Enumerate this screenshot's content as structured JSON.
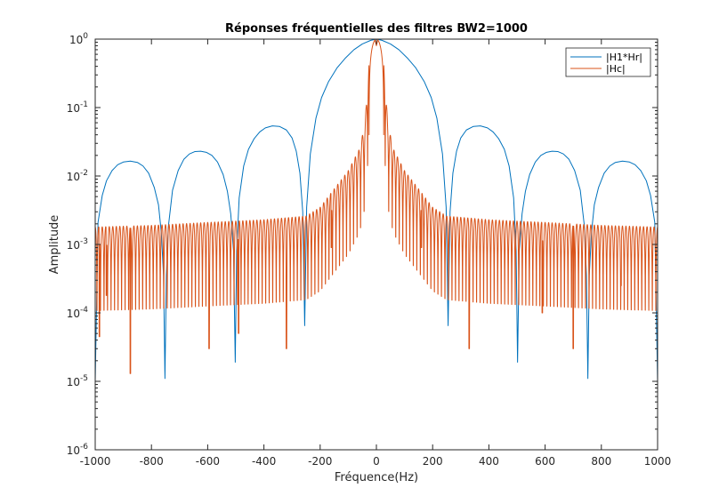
{
  "chart_data": {
    "type": "line",
    "title": "Réponses fréquentielles des filtres BW2=1000",
    "xlabel": "Fréquence(Hz)",
    "ylabel": "Amplitude",
    "xlim": [
      -1000,
      1000
    ],
    "ylim": [
      1e-06,
      1
    ],
    "yscale": "log",
    "xticks": [
      -1000,
      -800,
      -600,
      -400,
      -200,
      0,
      200,
      400,
      600,
      800,
      1000
    ],
    "yticks": [
      {
        "value": 1e-06,
        "base": "10",
        "exp": "-6"
      },
      {
        "value": 1e-05,
        "base": "10",
        "exp": "-5"
      },
      {
        "value": 0.0001,
        "base": "10",
        "exp": "-4"
      },
      {
        "value": 0.001,
        "base": "10",
        "exp": "-3"
      },
      {
        "value": 0.01,
        "base": "10",
        "exp": "-2"
      },
      {
        "value": 0.1,
        "base": "10",
        "exp": "-1"
      },
      {
        "value": 1,
        "base": "10",
        "exp": "0"
      }
    ],
    "grid": false,
    "legend_position": "top-right",
    "series": [
      {
        "name": "|H1*Hr|",
        "color": "#0072BD",
        "points": [
          [
            -1000,
            1e-05
          ],
          [
            -990,
            0.0021
          ],
          [
            -975,
            0.0052
          ],
          [
            -960,
            0.0085
          ],
          [
            -940,
            0.012
          ],
          [
            -920,
            0.0146
          ],
          [
            -900,
            0.016
          ],
          [
            -875,
            0.0165
          ],
          [
            -850,
            0.0158
          ],
          [
            -830,
            0.014
          ],
          [
            -810,
            0.011
          ],
          [
            -790,
            0.0068
          ],
          [
            -775,
            0.0038
          ],
          [
            -765,
            0.0015
          ],
          [
            -757,
            0.00035
          ],
          [
            -752,
            1.1e-05
          ],
          [
            -747,
            0.00035
          ],
          [
            -740,
            0.0018
          ],
          [
            -725,
            0.0062
          ],
          [
            -705,
            0.012
          ],
          [
            -685,
            0.0175
          ],
          [
            -665,
            0.021
          ],
          [
            -645,
            0.0228
          ],
          [
            -625,
            0.023
          ],
          [
            -605,
            0.0222
          ],
          [
            -585,
            0.02
          ],
          [
            -565,
            0.016
          ],
          [
            -545,
            0.0105
          ],
          [
            -530,
            0.006
          ],
          [
            -518,
            0.0028
          ],
          [
            -508,
            0.0008
          ],
          [
            -502,
            1.9e-05
          ],
          [
            -497,
            0.0008
          ],
          [
            -488,
            0.0048
          ],
          [
            -472,
            0.014
          ],
          [
            -455,
            0.0245
          ],
          [
            -435,
            0.035
          ],
          [
            -415,
            0.044
          ],
          [
            -395,
            0.0505
          ],
          [
            -370,
            0.054
          ],
          [
            -345,
            0.053
          ],
          [
            -320,
            0.047
          ],
          [
            -300,
            0.036
          ],
          [
            -285,
            0.023
          ],
          [
            -272,
            0.011
          ],
          [
            -262,
            0.003
          ],
          [
            -255,
            6.5e-05
          ],
          [
            -248,
            0.0035
          ],
          [
            -235,
            0.021
          ],
          [
            -215,
            0.07
          ],
          [
            -195,
            0.14
          ],
          [
            -170,
            0.24
          ],
          [
            -140,
            0.38
          ],
          [
            -110,
            0.53
          ],
          [
            -80,
            0.7
          ],
          [
            -50,
            0.85
          ],
          [
            -20,
            0.96
          ],
          [
            0,
            1.0
          ],
          [
            20,
            0.96
          ],
          [
            50,
            0.85
          ],
          [
            80,
            0.7
          ],
          [
            110,
            0.53
          ],
          [
            140,
            0.38
          ],
          [
            170,
            0.24
          ],
          [
            195,
            0.14
          ],
          [
            215,
            0.07
          ],
          [
            235,
            0.021
          ],
          [
            248,
            0.0035
          ],
          [
            255,
            6.5e-05
          ],
          [
            262,
            0.003
          ],
          [
            272,
            0.011
          ],
          [
            285,
            0.023
          ],
          [
            300,
            0.036
          ],
          [
            320,
            0.047
          ],
          [
            345,
            0.053
          ],
          [
            370,
            0.054
          ],
          [
            395,
            0.0505
          ],
          [
            415,
            0.044
          ],
          [
            435,
            0.035
          ],
          [
            455,
            0.0245
          ],
          [
            472,
            0.014
          ],
          [
            488,
            0.0048
          ],
          [
            497,
            0.0008
          ],
          [
            502,
            1.9e-05
          ],
          [
            508,
            0.0008
          ],
          [
            518,
            0.0028
          ],
          [
            530,
            0.006
          ],
          [
            545,
            0.0105
          ],
          [
            565,
            0.016
          ],
          [
            585,
            0.02
          ],
          [
            605,
            0.0222
          ],
          [
            625,
            0.023
          ],
          [
            645,
            0.0228
          ],
          [
            665,
            0.021
          ],
          [
            685,
            0.0175
          ],
          [
            705,
            0.012
          ],
          [
            725,
            0.0062
          ],
          [
            740,
            0.0018
          ],
          [
            747,
            0.00035
          ],
          [
            752,
            1.1e-05
          ],
          [
            757,
            0.00035
          ],
          [
            765,
            0.0015
          ],
          [
            775,
            0.0038
          ],
          [
            790,
            0.0068
          ],
          [
            810,
            0.011
          ],
          [
            830,
            0.014
          ],
          [
            850,
            0.0158
          ],
          [
            875,
            0.0165
          ],
          [
            900,
            0.016
          ],
          [
            920,
            0.0146
          ],
          [
            940,
            0.012
          ],
          [
            960,
            0.0085
          ],
          [
            975,
            0.0052
          ],
          [
            990,
            0.0021
          ],
          [
            1000,
            1e-05
          ]
        ]
      },
      {
        "name": "|Hc|",
        "color": "#D95319",
        "description": "oscillating sinc-like response with lobe spacing ~12.5 Hz; envelope ~0.0018 at |f|=1000 rising to ~0.0026 at |f|=250, ~0.012 at |f|=100, ~0.06 near |f|=30; main lobe ~1 around 0 with small notch to ~0.8 at 0",
        "envelope": [
          [
            0,
            1.0
          ],
          [
            20,
            0.9
          ],
          [
            30,
            0.3
          ],
          [
            40,
            0.06
          ],
          [
            60,
            0.025
          ],
          [
            100,
            0.012
          ],
          [
            150,
            0.0065
          ],
          [
            200,
            0.0035
          ],
          [
            250,
            0.0026
          ],
          [
            400,
            0.0023
          ],
          [
            600,
            0.0021
          ],
          [
            800,
            0.0019
          ],
          [
            1000,
            0.0018
          ]
        ],
        "lobe_spacing_hz": 12.5,
        "deep_nulls": [
          [
            -985,
            4.5e-05
          ],
          [
            -960,
            0.00018
          ],
          [
            -875,
            1.3e-05
          ],
          [
            -595,
            3e-05
          ],
          [
            -490,
            5e-05
          ],
          [
            -320,
            3e-05
          ],
          [
            -160,
            0.0009
          ],
          [
            160,
            0.0009
          ],
          [
            330,
            3e-05
          ],
          [
            590,
            0.0001
          ],
          [
            700,
            3e-05
          ],
          [
            870,
            0.00025
          ]
        ]
      }
    ]
  }
}
